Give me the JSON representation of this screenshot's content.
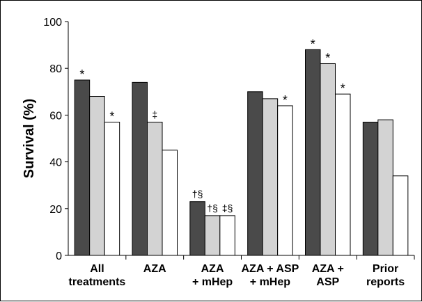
{
  "chart_data": {
    "type": "bar",
    "title": "",
    "xlabel": "",
    "ylabel": "Survival (%)",
    "ylim": [
      0,
      100
    ],
    "yticks": [
      0,
      20,
      40,
      60,
      80,
      100
    ],
    "grid": false,
    "legend": "none",
    "categories": [
      [
        "All",
        "treatments"
      ],
      [
        "AZA"
      ],
      [
        "AZA",
        "+ mHep"
      ],
      [
        "AZA + ASP",
        "+ mHep"
      ],
      [
        "AZA +",
        "ASP"
      ],
      [
        "Prior",
        "reports"
      ]
    ],
    "series": [
      {
        "color": "#4a4a4a",
        "values": [
          75,
          74,
          23,
          70,
          88,
          57
        ],
        "marks": [
          "*",
          "",
          "†§",
          "",
          "*",
          ""
        ]
      },
      {
        "color": "#d3d3d3",
        "values": [
          68,
          57,
          17,
          67,
          82,
          58
        ],
        "marks": [
          "",
          "‡",
          "†§",
          "",
          "*",
          ""
        ]
      },
      {
        "color": "#ffffff",
        "values": [
          57,
          45,
          17,
          64,
          69,
          34
        ],
        "marks": [
          "*",
          "",
          "‡§",
          "*",
          "*",
          ""
        ]
      }
    ]
  }
}
